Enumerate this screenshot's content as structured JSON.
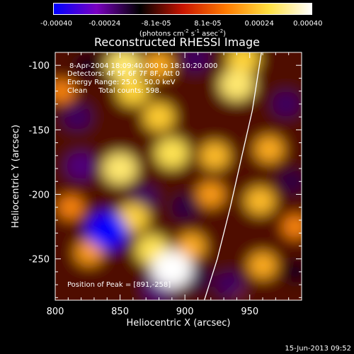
{
  "chart_data": {
    "type": "heatmap",
    "title": "Reconstructed RHESSI Image",
    "xlabel": "Heliocentric X (arcsec)",
    "ylabel": "Heliocentric Y (arcsec)",
    "xlim": [
      800,
      990
    ],
    "ylim": [
      -282,
      -90
    ],
    "x_ticks": [
      800,
      850,
      900,
      950
    ],
    "x_tick_labels": [
      "800",
      "850",
      "900",
      "950"
    ],
    "y_ticks": [
      -100,
      -150,
      -200,
      -250
    ],
    "y_tick_labels": [
      "-100",
      "-150",
      "-200",
      "-250"
    ],
    "colorbar": {
      "min": -0.0004,
      "max": 0.0004,
      "tick_labels": [
        "-0.00040",
        "-0.00024",
        "-8.1e-05",
        "8.1e-05",
        "0.00024",
        "0.00040"
      ],
      "units": "(photons cm-2 s-1 asec-2)",
      "colors": [
        "#0000ff",
        "#7a00c0",
        "#000000",
        "#c81400",
        "#ff7a00",
        "#ffe040",
        "#ffffff"
      ]
    },
    "annotations": [
      "8-Apr-2004 18:09:40.000 to 18:10:20.000",
      "Detectors: 4F 5F 6F 7F 8F, Att 0",
      "Energy Range: 25.0 - 50.0 keV",
      "Clean     Total counts: 598.",
      "Position of Peak = [891,-258]"
    ],
    "peak": {
      "x": 891,
      "y": -258
    },
    "limb_curve": [
      {
        "x": 915,
        "y": -282
      },
      {
        "x": 925,
        "y": -250
      },
      {
        "x": 935,
        "y": -210
      },
      {
        "x": 944,
        "y": -170
      },
      {
        "x": 952,
        "y": -135
      },
      {
        "x": 959,
        "y": -90
      }
    ],
    "blobs": [
      {
        "x": 890,
        "y": -258,
        "v": 0.0004
      },
      {
        "x": 875,
        "y": -243,
        "v": 0.00028
      },
      {
        "x": 905,
        "y": -240,
        "v": 0.0002
      },
      {
        "x": 826,
        "y": -245,
        "v": 0.00018
      },
      {
        "x": 860,
        "y": -218,
        "v": 0.00025
      },
      {
        "x": 850,
        "y": -180,
        "v": 0.0003
      },
      {
        "x": 890,
        "y": -168,
        "v": 0.00028
      },
      {
        "x": 923,
        "y": -170,
        "v": 0.00022
      },
      {
        "x": 920,
        "y": -200,
        "v": 0.00018
      },
      {
        "x": 880,
        "y": -140,
        "v": 0.00024
      },
      {
        "x": 860,
        "y": -120,
        "v": 0.00025
      },
      {
        "x": 853,
        "y": -100,
        "v": 0.0003
      },
      {
        "x": 880,
        "y": -100,
        "v": 0.0002
      },
      {
        "x": 940,
        "y": -115,
        "v": 0.0003
      },
      {
        "x": 945,
        "y": -95,
        "v": 0.00025
      },
      {
        "x": 965,
        "y": -165,
        "v": 0.0002
      },
      {
        "x": 958,
        "y": -205,
        "v": 0.00022
      },
      {
        "x": 960,
        "y": -255,
        "v": 0.0002
      },
      {
        "x": 812,
        "y": -210,
        "v": 0.00015
      },
      {
        "x": 805,
        "y": -120,
        "v": 0.00015
      },
      {
        "x": 985,
        "y": -225,
        "v": 0.00015
      },
      {
        "x": 937,
        "y": -272,
        "v": 0.00012
      },
      {
        "x": 840,
        "y": -228,
        "v": -0.0004
      },
      {
        "x": 817,
        "y": -140,
        "v": -0.0002
      },
      {
        "x": 820,
        "y": -178,
        "v": -0.00022
      },
      {
        "x": 880,
        "y": -273,
        "v": -0.00022
      },
      {
        "x": 910,
        "y": -265,
        "v": -0.00018
      },
      {
        "x": 935,
        "y": -270,
        "v": -0.0002
      },
      {
        "x": 908,
        "y": -95,
        "v": -0.0002
      },
      {
        "x": 900,
        "y": -210,
        "v": -0.00018
      },
      {
        "x": 978,
        "y": -130,
        "v": -0.0002
      },
      {
        "x": 982,
        "y": -190,
        "v": -0.00018
      },
      {
        "x": 868,
        "y": -203,
        "v": -0.0002
      },
      {
        "x": 825,
        "y": -100,
        "v": -0.00015
      },
      {
        "x": 985,
        "y": -260,
        "v": -0.00015
      }
    ]
  },
  "footer": {
    "date": "15-Jun-2013 09:52"
  }
}
